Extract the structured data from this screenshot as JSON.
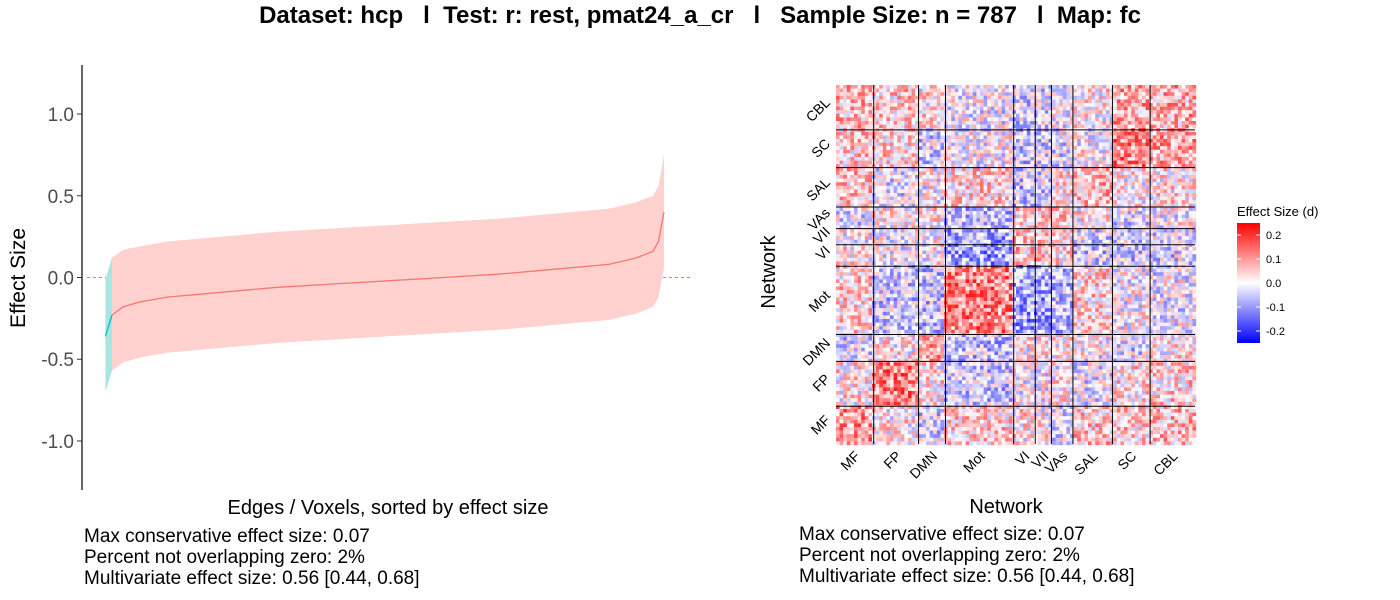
{
  "title": "Dataset: hcp   l  Test: r: rest, pmat24_a_cr   l   Sample Size: n = 787   l  Map: fc",
  "stats_left": [
    "Max conservative effect size: 0.07",
    "Percent not overlapping zero: 2%",
    "Multivariate effect size: 0.56 [0.44, 0.68]"
  ],
  "stats_right": [
    "Max conservative effect size: 0.07",
    "Percent not overlapping zero: 2%",
    "Multivariate effect size: 0.56 [0.44, 0.68]"
  ],
  "chart_data": [
    {
      "type": "line",
      "xlabel": "Edges / Voxels, sorted by effect size",
      "ylabel": "Effect Size",
      "ylim": [
        -1.3,
        1.3
      ],
      "yticks": [
        1.0,
        0.5,
        0.0,
        -0.5,
        -1.0
      ],
      "ytick_labels": [
        "1.0",
        "0.5",
        "0.0",
        "-0.5",
        "-1.0"
      ],
      "reference_line": 0,
      "x": [
        0,
        0.02,
        0.05,
        0.1,
        0.2,
        0.3,
        0.4,
        0.5,
        0.6,
        0.7,
        0.8,
        0.9,
        0.95,
        0.98,
        0.99,
        1.0
      ],
      "series": [
        {
          "color": "#F8766D",
          "band_color": "#FFD2CF",
          "estimate": [
            -0.23,
            -0.18,
            -0.15,
            -0.12,
            -0.09,
            -0.06,
            -0.04,
            -0.02,
            0.0,
            0.02,
            0.05,
            0.08,
            0.12,
            0.16,
            0.22,
            0.4
          ],
          "lower": [
            -0.57,
            -0.52,
            -0.49,
            -0.46,
            -0.43,
            -0.4,
            -0.38,
            -0.36,
            -0.34,
            -0.32,
            -0.29,
            -0.26,
            -0.22,
            -0.18,
            -0.12,
            0.06
          ],
          "upper": [
            0.12,
            0.17,
            0.19,
            0.22,
            0.25,
            0.28,
            0.3,
            0.32,
            0.34,
            0.36,
            0.39,
            0.42,
            0.46,
            0.5,
            0.56,
            0.75
          ]
        },
        {
          "color": "#00BFC4",
          "band_color": "#A8E6E4",
          "x": [
            -0.012,
            0
          ],
          "estimate": [
            -0.36,
            -0.23
          ],
          "lower": [
            -0.7,
            -0.57
          ],
          "upper": [
            -0.01,
            0.12
          ]
        }
      ],
      "grid": false
    },
    {
      "type": "heatmap",
      "xlabel": "Network",
      "ylabel": "Network",
      "networks": [
        "MF",
        "FP",
        "DMN",
        "Mot",
        "VI",
        "VII",
        "VAs",
        "SAL",
        "SC",
        "CBL"
      ],
      "legend": {
        "title": "Effect Size (d)",
        "ticks": [
          0.2,
          0.1,
          0.0,
          -0.1,
          -0.2
        ],
        "tick_labels": [
          "0.2",
          "0.1",
          "0.0",
          "-0.1",
          "-0.2"
        ],
        "range": [
          -0.25,
          0.25
        ],
        "colors": [
          "#0000FF",
          "#FFFFFF",
          "#FF0000"
        ]
      },
      "block_means": [
        [
          0.1,
          0.02,
          -0.03,
          0.04,
          0.02,
          0.01,
          -0.02,
          0.05,
          0.04,
          0.06
        ],
        [
          0.02,
          0.12,
          0.02,
          -0.04,
          0.0,
          0.0,
          0.01,
          -0.02,
          0.03,
          0.04
        ],
        [
          -0.03,
          0.02,
          0.09,
          -0.05,
          0.01,
          0.01,
          0.02,
          0.0,
          -0.03,
          0.02
        ],
        [
          0.04,
          -0.04,
          -0.05,
          0.12,
          -0.09,
          -0.08,
          -0.05,
          0.04,
          0.0,
          -0.01
        ],
        [
          0.02,
          0.0,
          0.01,
          -0.09,
          0.06,
          0.05,
          0.03,
          -0.05,
          -0.04,
          -0.03
        ],
        [
          0.01,
          0.0,
          0.01,
          -0.08,
          0.05,
          0.06,
          0.03,
          -0.03,
          -0.03,
          -0.02
        ],
        [
          -0.02,
          0.01,
          0.02,
          -0.05,
          0.03,
          0.03,
          0.06,
          0.02,
          -0.02,
          0.0
        ],
        [
          0.05,
          -0.02,
          0.0,
          0.04,
          -0.05,
          -0.03,
          0.02,
          0.06,
          0.01,
          0.02
        ],
        [
          0.04,
          0.03,
          -0.03,
          0.0,
          -0.04,
          -0.03,
          -0.02,
          0.01,
          0.12,
          0.08
        ],
        [
          0.06,
          0.04,
          0.02,
          -0.01,
          -0.03,
          -0.02,
          0.0,
          0.02,
          0.08,
          0.07
        ]
      ],
      "network_fraction": [
        0.105,
        0.125,
        0.075,
        0.19,
        0.06,
        0.045,
        0.06,
        0.11,
        0.105,
        0.125
      ],
      "grid_lines": true,
      "legend_placement": "right"
    }
  ]
}
